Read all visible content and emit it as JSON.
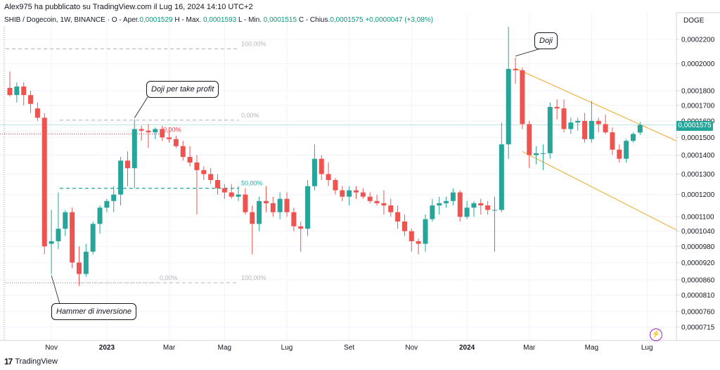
{
  "header": {
    "publisher": "Alex975 ha pubblicato su TradingView.com il Lug 16, 2024 14:10 UTC+2",
    "symbol": "SHIB / Dogecoin, 1W, BINANCE",
    "ohlc": {
      "open_label": "O - Aper.",
      "open": "0,0001529",
      "high_label": "H - Max.",
      "high": "0,0001593",
      "low_label": "L - Min.",
      "low": "0,0001515",
      "close_label": "C - Chius.",
      "close": "0,0001575",
      "change": "+0,0000047 (+3,08%)"
    },
    "currency": "DOGE"
  },
  "footer": {
    "brand": "TradingView",
    "logo": "tradingview-logo-icon"
  },
  "colors": {
    "up": "#26a69a",
    "down": "#ef5350",
    "trend": "#f5a623",
    "fib": "#b2b5be",
    "fib_mid": "#26a69a",
    "fib_level": "#f23645"
  },
  "chart_data": {
    "type": "candlestick",
    "scale": "log",
    "ylim": [
      7e-05,
      0.00025
    ],
    "y_ticks": [
      "0,0002200",
      "0,0002000",
      "0,0001800",
      "0,0001700",
      "0,0001600",
      "0,0001500",
      "0,0001400",
      "0,0001300",
      "0,0001200",
      "0,0001100",
      "0,0001040",
      "0,0000980",
      "0,0000920",
      "0,0000860",
      "0,0000810",
      "0,0000760",
      "0,0000715"
    ],
    "x_ticks": [
      "Nov",
      "2023",
      "Mar",
      "Mag",
      "Lug",
      "Set",
      "Nov",
      "2024",
      "Mar",
      "Mag",
      "Lug"
    ],
    "last_price": "0,0001575",
    "candles": [
      [
        0.000182,
        0.000194,
        0.000176,
        0.000177
      ],
      [
        0.000177,
        0.000186,
        0.000172,
        0.000183
      ],
      [
        0.000183,
        0.000186,
        0.00017,
        0.000177
      ],
      [
        0.000177,
        0.00018,
        0.000165,
        0.000171
      ],
      [
        0.000168,
        0.000172,
        0.00016,
        0.000162
      ],
      [
        0.000162,
        0.000165,
        9.5e-05,
        9.8e-05
      ],
      [
        9.9e-05,
        0.000113,
        8.8e-05,
        0.0001
      ],
      [
        0.0001,
        0.000121,
        9.7e-05,
        0.000105
      ],
      [
        0.000105,
        0.000113,
        0.000102,
        0.000112
      ],
      [
        0.000112,
        0.000114,
        9e-05,
        9.2e-05
      ],
      [
        9.2e-05,
        9.8e-05,
        8.4e-05,
        8.8e-05
      ],
      [
        8.8e-05,
        9.9e-05,
        8.7e-05,
        9.6e-05
      ],
      [
        9.6e-05,
        0.000108,
        9.5e-05,
        0.000107
      ],
      [
        0.000107,
        0.000115,
        0.000103,
        0.000114
      ],
      [
        0.000114,
        0.000118,
        0.000112,
        0.000117
      ],
      [
        0.000117,
        0.000124,
        0.000112,
        0.00012
      ],
      [
        0.00012,
        0.000139,
        0.000115,
        0.000137
      ],
      [
        0.000137,
        0.000142,
        0.000124,
        0.000133
      ],
      [
        0.000133,
        0.000161,
        0.000123,
        0.000155
      ],
      [
        0.000155,
        0.000157,
        0.000148,
        0.000154
      ],
      [
        0.000154,
        0.000158,
        0.000144,
        0.000153
      ],
      [
        0.000153,
        0.000156,
        0.000149,
        0.000155
      ],
      [
        0.000155,
        0.000157,
        0.000148,
        0.00015
      ],
      [
        0.00015,
        0.000156,
        0.000147,
        0.000149
      ],
      [
        0.000149,
        0.000151,
        0.000144,
        0.000145
      ],
      [
        0.000145,
        0.000148,
        0.000137,
        0.000139
      ],
      [
        0.000139,
        0.000145,
        0.000134,
        0.000136
      ],
      [
        0.000136,
        0.00014,
        0.000111,
        0.000132
      ],
      [
        0.000132,
        0.000134,
        0.000127,
        0.00013
      ],
      [
        0.00013,
        0.000133,
        0.000125,
        0.000127
      ],
      [
        0.000127,
        0.00013,
        0.00012,
        0.000123
      ],
      [
        0.000123,
        0.000125,
        0.000118,
        0.000121
      ],
      [
        0.000121,
        0.000125,
        0.000118,
        0.000119
      ],
      [
        0.000119,
        0.000124,
        0.000117,
        0.00012
      ],
      [
        0.00012,
        0.000123,
        0.000111,
        0.000112
      ],
      [
        0.000112,
        0.000115,
        9.5e-05,
        0.000107
      ],
      [
        0.000107,
        0.000119,
        0.000104,
        0.000117
      ],
      [
        0.000117,
        0.000124,
        0.000112,
        0.000116
      ],
      [
        0.000116,
        0.000119,
        0.00011,
        0.000112
      ],
      [
        0.000112,
        0.000121,
        0.000109,
        0.000118
      ],
      [
        0.000118,
        0.000121,
        0.00011,
        0.000112
      ],
      [
        0.000112,
        0.000114,
        0.000104,
        0.000106
      ],
      [
        0.000106,
        0.000108,
        9.6e-05,
        0.000105
      ],
      [
        0.000105,
        0.000127,
        0.000102,
        0.000124
      ],
      [
        0.000124,
        0.000146,
        0.000122,
        0.000138
      ],
      [
        0.000138,
        0.00014,
        0.000127,
        0.00013
      ],
      [
        0.00013,
        0.000136,
        0.000124,
        0.000127
      ],
      [
        0.000127,
        0.000128,
        0.00012,
        0.000122
      ],
      [
        0.000122,
        0.000124,
        0.000117,
        0.000119
      ],
      [
        0.000119,
        0.000124,
        0.000115,
        0.000122
      ],
      [
        0.000122,
        0.000124,
        0.000118,
        0.000121
      ],
      [
        0.000121,
        0.000123,
        0.000118,
        0.000119
      ],
      [
        0.000119,
        0.000121,
        0.000116,
        0.000117
      ],
      [
        0.000117,
        0.00012,
        0.000115,
        0.000116
      ],
      [
        0.000116,
        0.000122,
        0.000111,
        0.000115
      ],
      [
        0.000115,
        0.000118,
        0.00011,
        0.000112
      ],
      [
        0.000112,
        0.000115,
        0.000105,
        0.000108
      ],
      [
        0.000108,
        0.000111,
        0.000102,
        0.000104
      ],
      [
        0.000104,
        0.000105,
        9.6e-05,
        0.0001
      ],
      [
        0.0001,
        0.000101,
        9.5e-05,
        9.9e-05
      ],
      [
        9.9e-05,
        0.000111,
        9.6e-05,
        0.000109
      ],
      [
        0.000109,
        0.000118,
        0.000108,
        0.000115
      ],
      [
        0.000115,
        0.000119,
        0.000111,
        0.000116
      ],
      [
        0.000116,
        0.000119,
        0.000114,
        0.000117
      ],
      [
        0.000117,
        0.000123,
        0.000115,
        0.000121
      ],
      [
        0.000121,
        0.000122,
        0.000108,
        0.00011
      ],
      [
        0.00011,
        0.000117,
        0.000109,
        0.000114
      ],
      [
        0.000114,
        0.000117,
        0.00011,
        0.000116
      ],
      [
        0.000116,
        0.000118,
        0.000111,
        0.000115
      ],
      [
        0.000115,
        0.000117,
        0.000111,
        0.000113
      ],
      [
        0.000113,
        0.000119,
        9.6e-05,
        0.000113
      ],
      [
        0.000113,
        0.000159,
        0.000112,
        0.000146
      ],
      [
        0.000146,
        0.000231,
        0.000138,
        0.000196
      ],
      [
        0.000196,
        0.000205,
        0.000185,
        0.000195
      ],
      [
        0.000195,
        0.000197,
        0.000155,
        0.000158
      ],
      [
        0.000158,
        0.00016,
        0.000133,
        0.00014
      ],
      [
        0.00014,
        0.000145,
        0.000135,
        0.000141
      ],
      [
        0.000141,
        0.000146,
        0.000132,
        0.000141
      ],
      [
        0.000141,
        0.000172,
        0.000138,
        0.000169
      ],
      [
        0.000169,
        0.000174,
        0.000161,
        0.000168
      ],
      [
        0.000168,
        0.000174,
        0.000153,
        0.000155
      ],
      [
        0.000155,
        0.000162,
        0.000152,
        0.000159
      ],
      [
        0.000159,
        0.000162,
        0.000154,
        0.00016
      ],
      [
        0.00016,
        0.000165,
        0.000147,
        0.000149
      ],
      [
        0.000149,
        0.000173,
        0.000147,
        0.00016
      ],
      [
        0.00016,
        0.000162,
        0.000153,
        0.000158
      ],
      [
        0.000158,
        0.000164,
        0.000152,
        0.000153
      ],
      [
        0.000153,
        0.000156,
        0.00014,
        0.000143
      ],
      [
        0.000143,
        0.000146,
        0.000136,
        0.000138
      ],
      [
        0.000138,
        0.000149,
        0.000136,
        0.000148
      ],
      [
        0.000148,
        0.000153,
        0.000147,
        0.000152
      ],
      [
        0.0001529,
        0.0001593,
        0.0001515,
        0.0001575
      ]
    ],
    "fibonacci": [
      {
        "label": "100,00%",
        "value": 0.000212,
        "label_at": "right"
      },
      {
        "label": "0,00%",
        "value": 0.0001605,
        "label_at": "right"
      },
      {
        "label": "50,00%",
        "value": 0.000123,
        "label_at": "right"
      },
      {
        "label": "0,00%",
        "value": 8.5e-05,
        "label_at": "left"
      },
      {
        "label": "100,00%",
        "value": 8.5e-05,
        "label_at": "right"
      }
    ],
    "level_line": {
      "label": "0,00%",
      "value": 0.000152
    },
    "annotations": [
      {
        "text": "Doji",
        "candle": 73
      },
      {
        "text": "Doji per take profit",
        "candle": 18
      },
      {
        "text": "Hammer di inversione",
        "candle": 6
      }
    ]
  }
}
